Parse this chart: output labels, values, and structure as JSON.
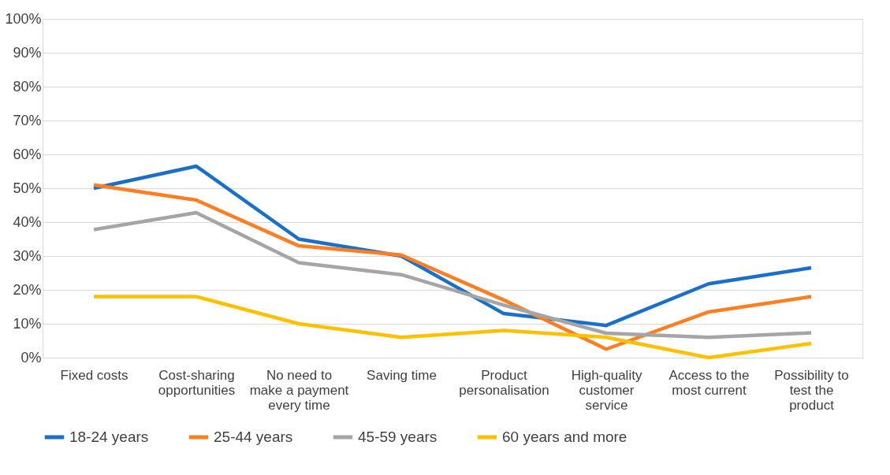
{
  "chart_data": {
    "type": "line",
    "categories": [
      "Fixed costs",
      "Cost-sharing opportunities",
      "No need to make a payment every time",
      "Saving time",
      "Product personalisation",
      "High-quality customer service",
      "Access to the most current",
      "Possibility to test the product"
    ],
    "series": [
      {
        "name": "18-24 years",
        "color": "#1a6fc8",
        "values": [
          50,
          56.5,
          35,
          30,
          13,
          9.5,
          21.8,
          26.5
        ]
      },
      {
        "name": "25-44 years",
        "color": "#fd7e23",
        "values": [
          51,
          46.5,
          33,
          30.3,
          17,
          2.5,
          13.5,
          18
        ]
      },
      {
        "name": "45-59 years",
        "color": "#a5a5a5",
        "values": [
          37.8,
          42.8,
          28,
          24.5,
          15.5,
          7.2,
          6,
          7.3
        ]
      },
      {
        "name": "60 years and more",
        "color": "#ffc000",
        "values": [
          18,
          18,
          10,
          6,
          8,
          6,
          0,
          4.2
        ]
      }
    ],
    "ylim": [
      0,
      100
    ],
    "yticks": [
      {
        "value": 0,
        "label": "0%"
      },
      {
        "value": 10,
        "label": "10%"
      },
      {
        "value": 20,
        "label": "20%"
      },
      {
        "value": 30,
        "label": "30%"
      },
      {
        "value": 40,
        "label": "40%"
      },
      {
        "value": 50,
        "label": "50%"
      },
      {
        "value": 60,
        "label": "60%"
      },
      {
        "value": 70,
        "label": "70%"
      },
      {
        "value": 80,
        "label": "80%"
      },
      {
        "value": 90,
        "label": "90%"
      },
      {
        "value": 100,
        "label": "100%"
      }
    ],
    "grid": "y",
    "legend": "bottom",
    "marker": "none",
    "line_style": "solid"
  }
}
